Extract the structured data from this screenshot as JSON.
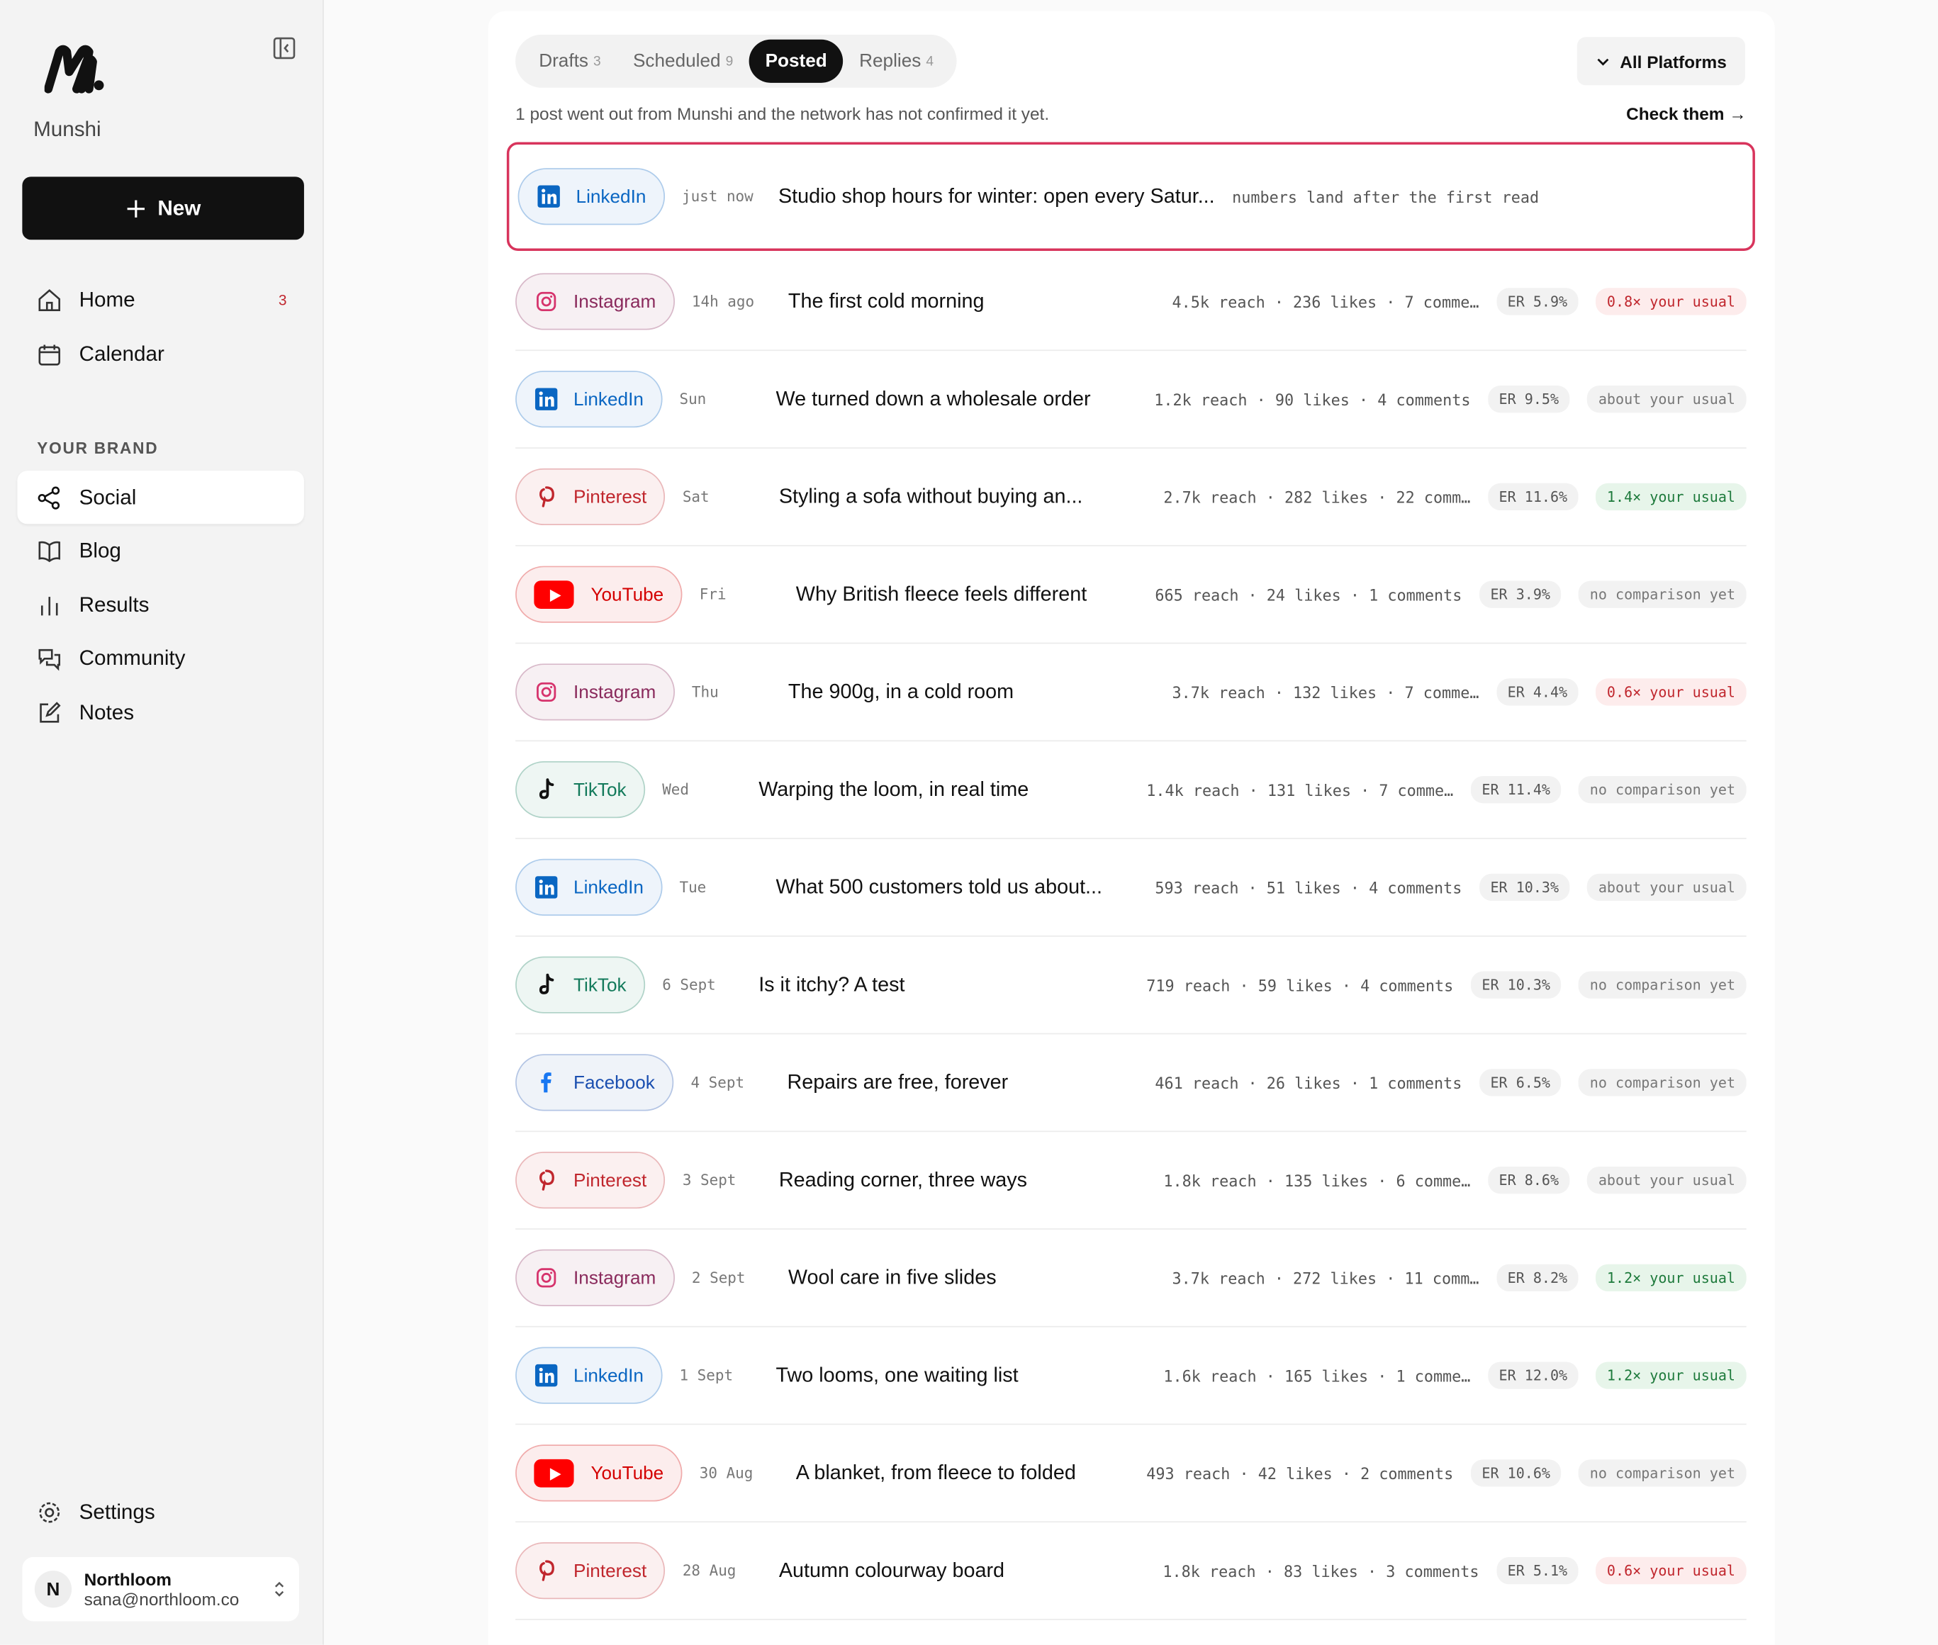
{
  "sidebar": {
    "brand": "Munshi",
    "new_button": "New",
    "nav": [
      {
        "label": "Home",
        "badge": "3"
      },
      {
        "label": "Calendar"
      }
    ],
    "section_title": "YOUR BRAND",
    "brand_nav": [
      {
        "label": "Social",
        "active": true
      },
      {
        "label": "Blog"
      },
      {
        "label": "Results"
      },
      {
        "label": "Community"
      },
      {
        "label": "Notes"
      }
    ],
    "settings": "Settings",
    "account": {
      "initial": "N",
      "name": "Northloom",
      "email": "sana@northloom.co"
    }
  },
  "tabs": [
    {
      "label": "Drafts",
      "count": "3"
    },
    {
      "label": "Scheduled",
      "count": "9"
    },
    {
      "label": "Posted",
      "active": true
    },
    {
      "label": "Replies",
      "count": "4"
    }
  ],
  "platform_filter": "All Platforms",
  "notice": {
    "text": "1 post went out from Munshi and the network has not confirmed it yet.",
    "link": "Check them →"
  },
  "posts": [
    {
      "platform": "LinkedIn",
      "icon": "linkedin",
      "color": "#0a66c2",
      "time": "just now",
      "title": "Studio shop hours for winter: open every Satur...",
      "stats": "numbers land after the first read",
      "highlighted": true
    },
    {
      "platform": "Instagram",
      "icon": "instagram",
      "color": "#8a2a5c",
      "time": "14h ago",
      "title": "The first cold morning",
      "stats": "4.5k reach · 236 likes · 7 comme…",
      "er": "ER 5.9%",
      "comparison": "0.8× your usual",
      "comparison_color": "#c0262d",
      "comparison_bg": "#fdecec"
    },
    {
      "platform": "LinkedIn",
      "icon": "linkedin",
      "color": "#0a66c2",
      "time": "Sun",
      "title": "We turned down a wholesale order",
      "stats": "1.2k reach · 90 likes · 4 comments",
      "er": "ER 9.5%",
      "comparison": "about your usual",
      "comparison_color": "#777777",
      "comparison_bg": "#f2f2f2"
    },
    {
      "platform": "Pinterest",
      "icon": "pinterest",
      "color": "#c0262d",
      "time": "Sat",
      "title": "Styling a sofa without buying an...",
      "stats": "2.7k reach · 282 likes · 22 comm…",
      "er": "ER 11.6%",
      "comparison": "1.4× your usual",
      "comparison_color": "#1e7a3c",
      "comparison_bg": "#e7f5ea"
    },
    {
      "platform": "YouTube",
      "icon": "youtube",
      "color": "#d40000",
      "time": "Fri",
      "title": "Why British fleece feels different",
      "stats": "665 reach · 24 likes · 1 comments",
      "er": "ER 3.9%",
      "comparison": "no comparison yet",
      "comparison_color": "#777777",
      "comparison_bg": "#f2f2f2"
    },
    {
      "platform": "Instagram",
      "icon": "instagram",
      "color": "#8a2a5c",
      "time": "Thu",
      "title": "The 900g, in a cold room",
      "stats": "3.7k reach · 132 likes · 7 comme…",
      "er": "ER 4.4%",
      "comparison": "0.6× your usual",
      "comparison_color": "#c0262d",
      "comparison_bg": "#fdecec"
    },
    {
      "platform": "TikTok",
      "icon": "tiktok",
      "color": "#137a5b",
      "time": "Wed",
      "title": "Warping the loom, in real time",
      "stats": "1.4k reach · 131 likes · 7 comme…",
      "er": "ER 11.4%",
      "comparison": "no comparison yet",
      "comparison_color": "#777777",
      "comparison_bg": "#f2f2f2"
    },
    {
      "platform": "LinkedIn",
      "icon": "linkedin",
      "color": "#0a66c2",
      "time": "Tue",
      "title": "What 500 customers told us about...",
      "stats": "593 reach · 51 likes · 4 comments",
      "er": "ER 10.3%",
      "comparison": "about your usual",
      "comparison_color": "#777777",
      "comparison_bg": "#f2f2f2"
    },
    {
      "platform": "TikTok",
      "icon": "tiktok",
      "color": "#137a5b",
      "time": "6 Sept",
      "title": "Is it itchy? A test",
      "stats": "719 reach · 59 likes · 4 comments",
      "er": "ER 10.3%",
      "comparison": "no comparison yet",
      "comparison_color": "#777777",
      "comparison_bg": "#f2f2f2"
    },
    {
      "platform": "Facebook",
      "icon": "facebook",
      "color": "#1b4fb0",
      "time": "4 Sept",
      "title": "Repairs are free, forever",
      "stats": "461 reach · 26 likes · 1 comments",
      "er": "ER 6.5%",
      "comparison": "no comparison yet",
      "comparison_color": "#777777",
      "comparison_bg": "#f2f2f2"
    },
    {
      "platform": "Pinterest",
      "icon": "pinterest",
      "color": "#c0262d",
      "time": "3 Sept",
      "title": "Reading corner, three ways",
      "stats": "1.8k reach · 135 likes · 6 comme…",
      "er": "ER 8.6%",
      "comparison": "about your usual",
      "comparison_color": "#777777",
      "comparison_bg": "#f2f2f2"
    },
    {
      "platform": "Instagram",
      "icon": "instagram",
      "color": "#8a2a5c",
      "time": "2 Sept",
      "title": "Wool care in five slides",
      "stats": "3.7k reach · 272 likes · 11 comm…",
      "er": "ER 8.2%",
      "comparison": "1.2× your usual",
      "comparison_color": "#1e7a3c",
      "comparison_bg": "#e7f5ea"
    },
    {
      "platform": "LinkedIn",
      "icon": "linkedin",
      "color": "#0a66c2",
      "time": "1 Sept",
      "title": "Two looms, one waiting list",
      "stats": "1.6k reach · 165 likes · 1 comme…",
      "er": "ER 12.0%",
      "comparison": "1.2× your usual",
      "comparison_color": "#1e7a3c",
      "comparison_bg": "#e7f5ea"
    },
    {
      "platform": "YouTube",
      "icon": "youtube",
      "color": "#d40000",
      "time": "30 Aug",
      "title": "A blanket, from fleece to folded",
      "stats": "493 reach · 42 likes · 2 comments",
      "er": "ER 10.6%",
      "comparison": "no comparison yet",
      "comparison_color": "#777777",
      "comparison_bg": "#f2f2f2"
    },
    {
      "platform": "Pinterest",
      "icon": "pinterest",
      "color": "#c0262d",
      "time": "28 Aug",
      "title": "Autumn colourway board",
      "stats": "1.8k reach · 83 likes · 3 comments",
      "er": "ER 5.1%",
      "comparison": "0.6× your usual",
      "comparison_color": "#c0262d",
      "comparison_bg": "#fdecec"
    }
  ]
}
